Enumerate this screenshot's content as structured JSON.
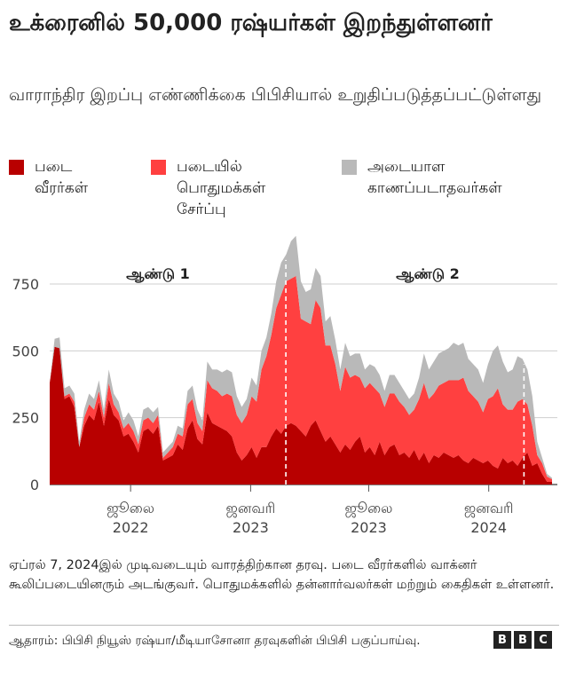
{
  "header": {
    "title": "உக்ரைனில் 50,000 ரஷ்யர்கள் இறந்துள்ளனர்",
    "subtitle": "வாராந்திர இறப்பு எண்ணிக்கை பிபிசியால் உறுதிப்படுத்தப்பட்டுள்ளது"
  },
  "legend": [
    {
      "label": "படை\nவீரர்கள்",
      "color": "#b80000"
    },
    {
      "label": "படையில்\nபொதுமக்கள்\nசேர்ப்பு",
      "color": "#ff4040"
    },
    {
      "label": "அடையாள\nகாணப்படாதவர்கள்",
      "color": "#b9b9b9"
    }
  ],
  "chart_data": {
    "type": "area",
    "stacked": true,
    "x_unit": "week ending",
    "x_start": "2022-02-27",
    "x_end": "2024-04-07",
    "ylim": [
      0,
      950
    ],
    "yticks": [
      {
        "value": 0,
        "label": "0"
      },
      {
        "value": 250,
        "label": "250"
      },
      {
        "value": 500,
        "label": "500"
      },
      {
        "value": 750,
        "label": "750"
      }
    ],
    "xticks": [
      {
        "date": "2022-07-01",
        "label1": "ஜூலை",
        "label2": "2022"
      },
      {
        "date": "2023-01-01",
        "label1": "ஜனவரி",
        "label2": "2023"
      },
      {
        "date": "2023-07-01",
        "label1": "ஜூலை",
        "label2": "2023"
      },
      {
        "date": "2024-01-01",
        "label1": "ஜனவரி",
        "label2": "2024"
      }
    ],
    "grid": true,
    "year_markers": [
      {
        "date": "2023-02-24",
        "label": "ஆண்டு 1"
      },
      {
        "date": "2024-02-24",
        "label": "ஆண்டு 2"
      }
    ],
    "series": [
      {
        "name": "படை வீரர்கள்",
        "color": "#b80000",
        "values": [
          380,
          515,
          510,
          320,
          330,
          290,
          140,
          220,
          260,
          240,
          310,
          220,
          320,
          260,
          240,
          180,
          190,
          160,
          120,
          200,
          210,
          190,
          220,
          90,
          100,
          110,
          150,
          130,
          210,
          240,
          170,
          150,
          270,
          230,
          220,
          210,
          200,
          180,
          120,
          90,
          110,
          140,
          100,
          140,
          140,
          180,
          210,
          190,
          220,
          230,
          220,
          200,
          180,
          220,
          240,
          200,
          160,
          180,
          150,
          120,
          150,
          130,
          160,
          180,
          120,
          140,
          110,
          160,
          110,
          140,
          150,
          110,
          120,
          100,
          130,
          90,
          120,
          80,
          110,
          100,
          120,
          110,
          100,
          110,
          90,
          80,
          100,
          90,
          80,
          90,
          70,
          60,
          100,
          80,
          90,
          70,
          100,
          120,
          70,
          80,
          40,
          10,
          10
        ]
      },
      {
        "name": "படையில் பொதுமக்கள் சேர்ப்பு",
        "color": "#ff4040",
        "values": [
          0,
          0,
          0,
          10,
          10,
          20,
          0,
          30,
          40,
          40,
          40,
          30,
          60,
          40,
          30,
          30,
          40,
          40,
          30,
          40,
          40,
          40,
          40,
          10,
          20,
          30,
          40,
          50,
          90,
          80,
          60,
          50,
          120,
          130,
          130,
          120,
          140,
          150,
          140,
          140,
          150,
          190,
          210,
          290,
          340,
          380,
          450,
          520,
          540,
          540,
          560,
          420,
          430,
          380,
          450,
          460,
          360,
          340,
          300,
          230,
          290,
          270,
          250,
          220,
          240,
          240,
          250,
          180,
          180,
          200,
          190,
          200,
          170,
          160,
          150,
          230,
          260,
          240,
          230,
          270,
          260,
          280,
          290,
          280,
          310,
          270,
          230,
          220,
          190,
          230,
          260,
          300,
          200,
          200,
          190,
          240,
          220,
          180,
          150,
          30,
          40,
          20,
          10
        ]
      },
      {
        "name": "அடையாள காணப்படாதவர்கள்",
        "color": "#b9b9b9",
        "values": [
          0,
          30,
          40,
          30,
          30,
          30,
          20,
          30,
          40,
          40,
          40,
          30,
          50,
          40,
          40,
          30,
          40,
          40,
          30,
          40,
          40,
          40,
          30,
          20,
          20,
          20,
          30,
          30,
          50,
          50,
          50,
          40,
          70,
          70,
          80,
          90,
          90,
          90,
          70,
          60,
          60,
          70,
          60,
          70,
          70,
          80,
          100,
          120,
          100,
          140,
          150,
          140,
          110,
          130,
          120,
          120,
          90,
          110,
          90,
          80,
          90,
          80,
          80,
          90,
          70,
          70,
          80,
          70,
          60,
          70,
          70,
          70,
          60,
          60,
          60,
          80,
          110,
          110,
          120,
          120,
          120,
          120,
          140,
          130,
          130,
          120,
          120,
          120,
          110,
          130,
          170,
          160,
          160,
          140,
          150,
          170,
          150,
          130,
          110,
          50,
          20,
          10,
          5
        ]
      }
    ]
  },
  "footer": {
    "note": "ஏப்ரல் 7, 2024இல் முடிவடையும் வாரத்திற்கான தரவு. படை வீரர்களில் வாக்னர் கூலிப்படையினரும் அடங்குவர். பொதுமக்களில் தன்னார்வலர்கள் மற்றும் கைதிகள் உள்ளனர்.",
    "source": "ஆதாரம்: பிபிசி நியூஸ் ரஷ்யா/மீடியாசோனா தரவுகளின் பிபிசி பகுப்பாய்வு.",
    "brand": [
      "B",
      "B",
      "C"
    ]
  }
}
